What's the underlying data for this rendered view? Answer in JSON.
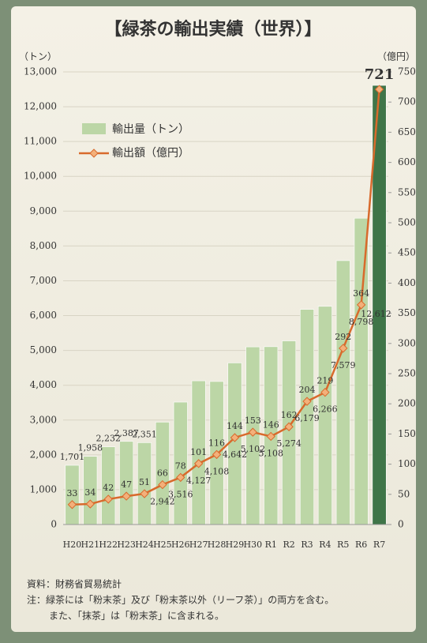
{
  "chart_data": {
    "type": "bar-line",
    "title": "【緑茶の輸出実績（世界）】",
    "y_label": "（トン）",
    "y2_label": "（億円）",
    "categories": [
      "H20",
      "H21",
      "H22",
      "H23",
      "H24",
      "H25",
      "H26",
      "H27",
      "H28",
      "H29",
      "H30",
      "R1",
      "R2",
      "R3",
      "R4",
      "R5",
      "R6",
      "R7"
    ],
    "series": [
      {
        "name": "輸出量（トン）",
        "type": "bar",
        "color": "#bcd6a6",
        "colors": [
          "#bcd6a6",
          "#bcd6a6",
          "#bcd6a6",
          "#bcd6a6",
          "#bcd6a6",
          "#bcd6a6",
          "#bcd6a6",
          "#bcd6a6",
          "#bcd6a6",
          "#bcd6a6",
          "#bcd6a6",
          "#bcd6a6",
          "#bcd6a6",
          "#bcd6a6",
          "#bcd6a6",
          "#bcd6a6",
          "#bcd6a6",
          "#3f7548"
        ],
        "values": [
          1701,
          1958,
          2232,
          2387,
          2351,
          2942,
          3516,
          4127,
          4108,
          4642,
          5102,
          5108,
          5274,
          6179,
          6266,
          7579,
          8798,
          12612
        ],
        "value_labels": [
          "1,701",
          "1,958",
          "2,232",
          "2,387",
          "2,351",
          "2,942",
          "3,516",
          "4,127",
          "4,108",
          "4,642",
          "5,102",
          "5,108",
          "5,274",
          "6,179",
          "6,266",
          "7,579",
          "8,798",
          "12,612"
        ]
      },
      {
        "name": "輸出額（億円）",
        "type": "line",
        "axis": "y2",
        "color": "#d86a2c",
        "highlight_color": "#b5261e",
        "values": [
          33,
          34,
          42,
          47,
          51,
          66,
          78,
          101,
          116,
          144,
          153,
          146,
          162,
          204,
          219,
          292,
          364,
          721
        ]
      }
    ],
    "ylim": [
      0,
      13000
    ],
    "yticks": [
      0,
      {
        "value": 1000,
        "label": "1,000"
      },
      {
        "value": 2000,
        "label": "2,000"
      },
      {
        "value": 3000,
        "label": "3,000"
      },
      {
        "value": 4000,
        "label": "4,000"
      },
      {
        "value": 5000,
        "label": "5,000"
      },
      {
        "value": 6000,
        "label": "6,000"
      },
      {
        "value": 7000,
        "label": "7,000"
      },
      {
        "value": 8000,
        "label": "8,000"
      },
      {
        "value": 9000,
        "label": "9,000"
      },
      {
        "value": 10000,
        "label": "10,000"
      },
      {
        "value": 11000,
        "label": "11,000"
      },
      {
        "value": 12000,
        "label": "12,000"
      },
      {
        "value": 13000,
        "label": "13,000"
      }
    ],
    "y2lim": [
      0,
      750
    ],
    "y2ticks": [
      0,
      50,
      100,
      150,
      200,
      250,
      300,
      350,
      400,
      450,
      500,
      550,
      600,
      650,
      700,
      750
    ],
    "grid": true,
    "legend": "upper left",
    "notes": [
      "資料：財務省貿易統計",
      "注：緑茶には「粉末茶」及び「粉末茶以外（リーフ茶）」の両方を含む。",
      "また、「抹茶」は「粉末茶」に含まれる。"
    ]
  }
}
